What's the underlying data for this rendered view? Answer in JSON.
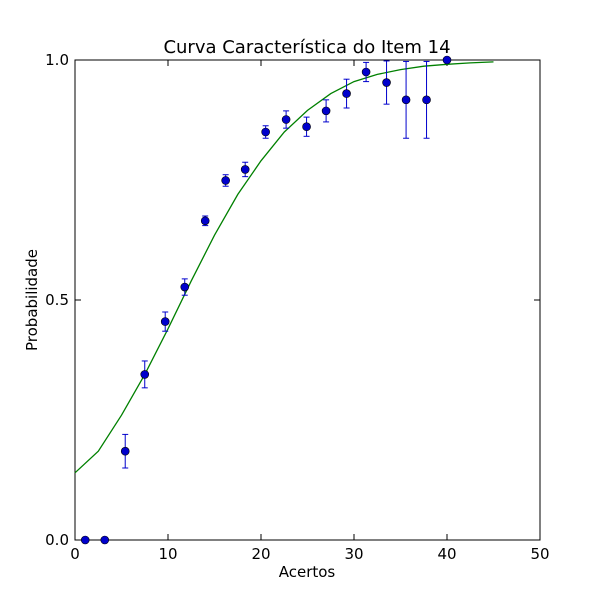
{
  "chart_data": {
    "type": "scatter",
    "title": "Curva Característica do Item 14",
    "xlabel": "Acertos",
    "ylabel": "Probabilidade",
    "xlim": [
      0,
      50
    ],
    "ylim": [
      0.0,
      1.0
    ],
    "x_ticks": [
      0,
      10,
      20,
      30,
      40,
      50
    ],
    "x_tick_labels": [
      "0",
      "10",
      "20",
      "30",
      "40",
      "50"
    ],
    "y_ticks": [
      0.0,
      0.5,
      1.0
    ],
    "y_tick_labels": [
      "0.0",
      "0.5",
      "1.0"
    ],
    "grid": false,
    "series": [
      {
        "kind": "points_with_error_bars",
        "color": "#0000cc",
        "points": [
          {
            "x": 1.1,
            "y": 0.0,
            "err": 0.0
          },
          {
            "x": 3.2,
            "y": 0.0,
            "err": 0.0
          },
          {
            "x": 5.4,
            "y": 0.185,
            "err": 0.035
          },
          {
            "x": 7.5,
            "y": 0.345,
            "err": 0.028
          },
          {
            "x": 9.7,
            "y": 0.455,
            "err": 0.02
          },
          {
            "x": 11.8,
            "y": 0.527,
            "err": 0.017
          },
          {
            "x": 14.0,
            "y": 0.665,
            "err": 0.01
          },
          {
            "x": 16.2,
            "y": 0.749,
            "err": 0.012
          },
          {
            "x": 18.3,
            "y": 0.772,
            "err": 0.015
          },
          {
            "x": 20.5,
            "y": 0.85,
            "err": 0.013
          },
          {
            "x": 22.7,
            "y": 0.876,
            "err": 0.018
          },
          {
            "x": 24.9,
            "y": 0.861,
            "err": 0.02
          },
          {
            "x": 27.0,
            "y": 0.894,
            "err": 0.023
          },
          {
            "x": 29.2,
            "y": 0.93,
            "err": 0.03
          },
          {
            "x": 31.3,
            "y": 0.975,
            "err": 0.02
          },
          {
            "x": 33.5,
            "y": 0.953,
            "err": 0.045
          },
          {
            "x": 35.6,
            "y": 0.917,
            "err": 0.08
          },
          {
            "x": 37.8,
            "y": 0.917,
            "err": 0.08
          },
          {
            "x": 40.0,
            "y": 1.0,
            "err": 0.0
          }
        ]
      },
      {
        "kind": "line",
        "color": "#008000",
        "x": [
          0,
          2.5,
          5,
          7.5,
          10,
          12.5,
          15,
          17.5,
          20,
          22.5,
          25,
          27.5,
          30,
          32.5,
          35,
          37.5,
          40,
          42.5,
          45
        ],
        "y": [
          0.14,
          0.185,
          0.26,
          0.345,
          0.44,
          0.54,
          0.635,
          0.72,
          0.79,
          0.85,
          0.895,
          0.93,
          0.955,
          0.97,
          0.98,
          0.987,
          0.991,
          0.994,
          0.996
        ]
      }
    ]
  }
}
